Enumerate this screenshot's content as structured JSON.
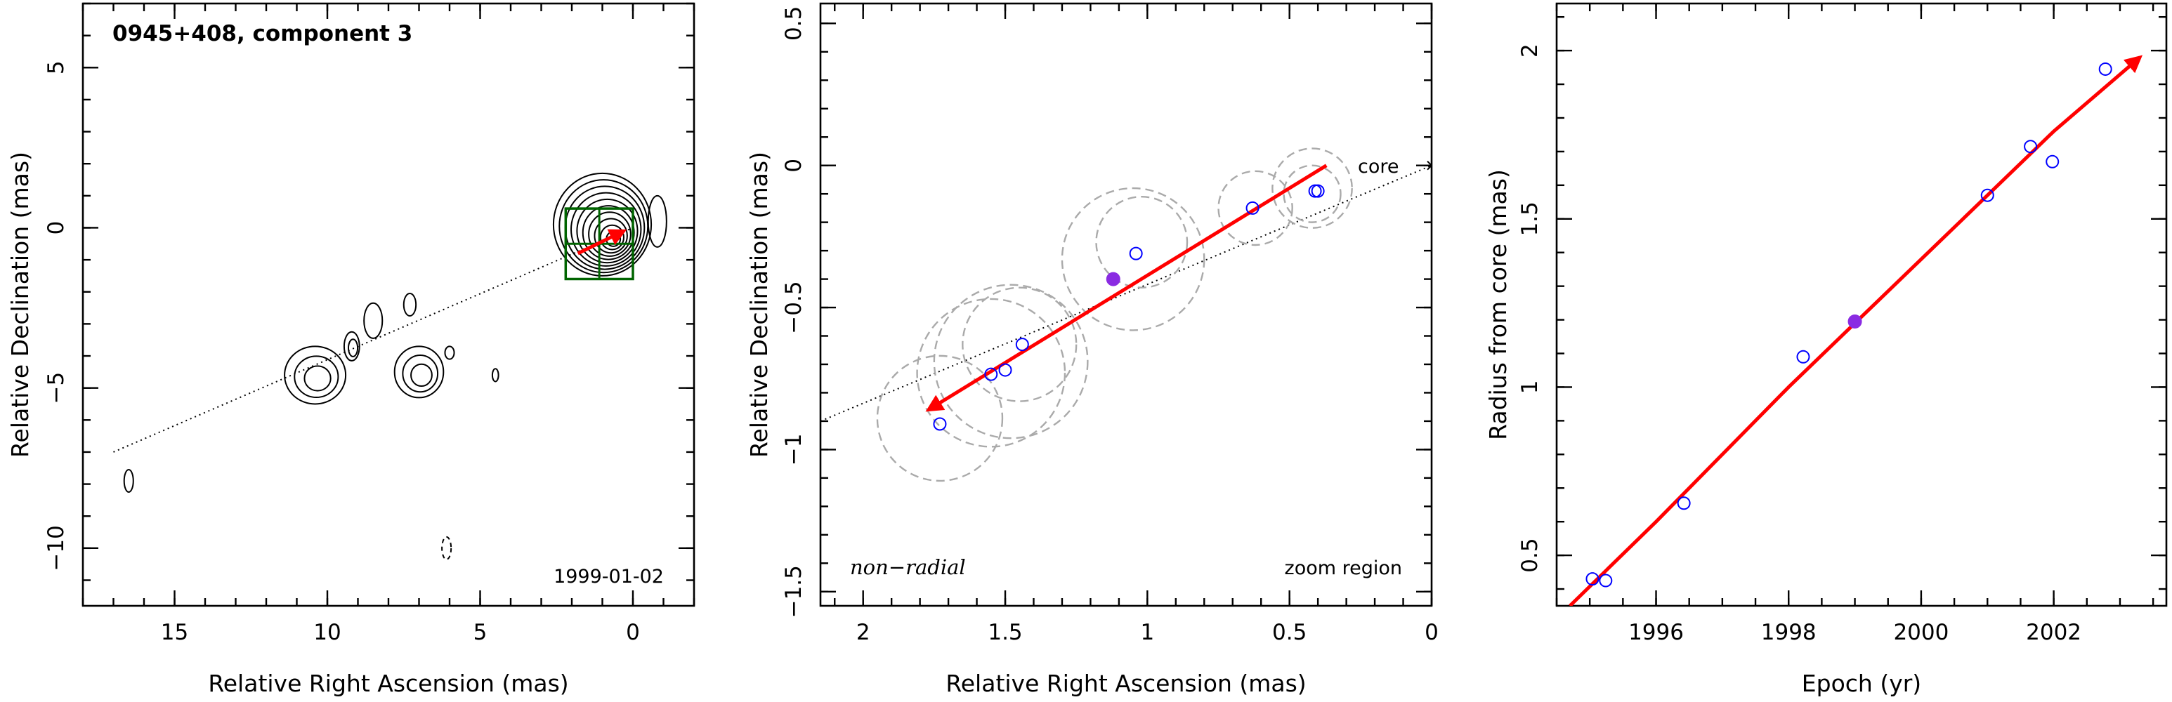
{
  "colors": {
    "arrow": "#ff0000",
    "open_points": "#0000ff",
    "filled_point": "#8a2be2",
    "box": "#006400",
    "dashed_circle": "#aaaaaa",
    "contours": "#000000"
  },
  "chart_data": [
    {
      "type": "scatter",
      "title": "0945+408, component 3",
      "annotation": "1999-01-02",
      "xlabel": "Relative Right Ascension (mas)",
      "ylabel": "Relative Declination (mas)",
      "xlim": [
        18,
        -2
      ],
      "ylim": [
        -11.8,
        7
      ],
      "xticks": [
        15,
        10,
        5,
        0
      ],
      "yticks": [
        5,
        0,
        -5,
        -10
      ],
      "trajectory_line": [
        [
          17,
          -7
        ],
        [
          0,
          0
        ]
      ],
      "arrow": {
        "from": [
          1.8,
          -0.8
        ],
        "to": [
          0.3,
          -0.1
        ]
      },
      "zoom_box": {
        "x": [
          2.2,
          0
        ],
        "y": [
          -1.6,
          0.6
        ]
      },
      "contours": [
        {
          "cx": 1.0,
          "cy": 0.1,
          "rx": 1.6,
          "ry": 1.6,
          "levels": 10
        },
        {
          "cx": -0.8,
          "cy": 0.2,
          "rx": 0.3,
          "ry": 0.8,
          "levels": 1
        },
        {
          "cx": 10.4,
          "cy": -4.6,
          "rx": 1.0,
          "ry": 0.9,
          "levels": 3
        },
        {
          "cx": 9.2,
          "cy": -3.7,
          "rx": 0.25,
          "ry": 0.45,
          "levels": 2
        },
        {
          "cx": 8.5,
          "cy": -2.9,
          "rx": 0.3,
          "ry": 0.55,
          "levels": 1
        },
        {
          "cx": 7.3,
          "cy": -2.4,
          "rx": 0.2,
          "ry": 0.35,
          "levels": 1
        },
        {
          "cx": 7.0,
          "cy": -4.5,
          "rx": 0.8,
          "ry": 0.8,
          "levels": 3
        },
        {
          "cx": 6.0,
          "cy": -3.9,
          "rx": 0.15,
          "ry": 0.2,
          "levels": 1
        },
        {
          "cx": 4.5,
          "cy": -4.6,
          "rx": 0.1,
          "ry": 0.2,
          "levels": 1
        },
        {
          "cx": 16.5,
          "cy": -7.9,
          "rx": 0.15,
          "ry": 0.35,
          "levels": 1
        },
        {
          "cx": 6.1,
          "cy": -10.0,
          "rx": 0.15,
          "ry": 0.35,
          "levels": 1,
          "dashed": true
        }
      ]
    },
    {
      "type": "scatter",
      "xlabel": "Relative Right Ascension (mas)",
      "ylabel": "Relative Declination (mas)",
      "xlim": [
        2.15,
        0
      ],
      "ylim": [
        -1.55,
        0.57
      ],
      "xticks": [
        2,
        1.5,
        1,
        0.5,
        0
      ],
      "yticks": [
        0.5,
        0,
        -0.5,
        -1,
        -1.5
      ],
      "label_core": "core",
      "label_nonradial": "non−radial",
      "label_zoom": "zoom region",
      "trajectory_line": [
        [
          2.15,
          -0.9
        ],
        [
          0,
          0
        ]
      ],
      "arrow": {
        "from": [
          0.37,
          0.0
        ],
        "to": [
          1.77,
          -0.86
        ]
      },
      "points": [
        {
          "x": 1.73,
          "y": -0.91
        },
        {
          "x": 1.55,
          "y": -0.735
        },
        {
          "x": 1.5,
          "y": -0.72
        },
        {
          "x": 1.44,
          "y": -0.63
        },
        {
          "x": 1.04,
          "y": -0.31
        },
        {
          "x": 0.63,
          "y": -0.15
        },
        {
          "x": 0.41,
          "y": -0.09
        },
        {
          "x": 0.4,
          "y": -0.09
        }
      ],
      "filled_point": {
        "x": 1.12,
        "y": -0.4
      },
      "circles": [
        {
          "x": 1.73,
          "y": -0.89,
          "r": 0.22
        },
        {
          "x": 1.55,
          "y": -0.73,
          "r": 0.26
        },
        {
          "x": 1.48,
          "y": -0.69,
          "r": 0.27
        },
        {
          "x": 1.45,
          "y": -0.63,
          "r": 0.2
        },
        {
          "x": 1.05,
          "y": -0.33,
          "r": 0.25
        },
        {
          "x": 1.02,
          "y": -0.27,
          "r": 0.16
        },
        {
          "x": 0.62,
          "y": -0.15,
          "r": 0.13
        },
        {
          "x": 0.42,
          "y": -0.1,
          "r": 0.1
        },
        {
          "x": 0.42,
          "y": -0.08,
          "r": 0.14
        }
      ]
    },
    {
      "type": "scatter",
      "xlabel": "Epoch (yr)",
      "ylabel": "Radius from core (mas)",
      "xlim": [
        1994.5,
        2003.7
      ],
      "ylim": [
        0.35,
        2.14
      ],
      "xticks": [
        1996,
        1998,
        2000,
        2002
      ],
      "yticks": [
        0.5,
        1,
        1.5,
        2
      ],
      "points": [
        {
          "x": 1995.04,
          "y": 0.43
        },
        {
          "x": 1995.24,
          "y": 0.425
        },
        {
          "x": 1996.42,
          "y": 0.655
        },
        {
          "x": 1998.22,
          "y": 1.09
        },
        {
          "x": 2001.0,
          "y": 1.57
        },
        {
          "x": 2001.65,
          "y": 1.715
        },
        {
          "x": 2001.98,
          "y": 1.67
        },
        {
          "x": 2002.78,
          "y": 1.945
        }
      ],
      "filled_point": {
        "x": 1999.0,
        "y": 1.195
      },
      "fit_curve": [
        {
          "x": 1994.7,
          "y": 0.35
        },
        {
          "x": 1996.0,
          "y": 0.6
        },
        {
          "x": 1998.0,
          "y": 1.0
        },
        {
          "x": 2000.0,
          "y": 1.38
        },
        {
          "x": 2002.0,
          "y": 1.76
        },
        {
          "x": 2003.3,
          "y": 1.98
        }
      ]
    }
  ]
}
